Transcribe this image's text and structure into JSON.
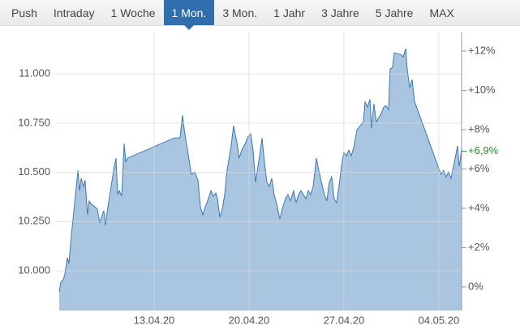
{
  "tabs": [
    "Push",
    "Intraday",
    "1 Woche",
    "1 Mon.",
    "3 Mon.",
    "1 Jahr",
    "3 Jahre",
    "5 Jahre",
    "MAX"
  ],
  "active_tab": 3,
  "chart_data": {
    "type": "area",
    "color": "#a9c5df",
    "line_color": "#3b78b3",
    "grid": true,
    "x": [
      0,
      0.12,
      0.3,
      0.42,
      0.6,
      0.72,
      0.9,
      1.14,
      1.38,
      1.5,
      1.62,
      1.79,
      1.91,
      2.09,
      2.21,
      2.39,
      2.63,
      2.81,
      2.99,
      3.17,
      3.29,
      3.41,
      3.59,
      3.83,
      4.01,
      4.19,
      4.31,
      4.43,
      4.61,
      4.79,
      4.91,
      5.03,
      8.5,
      8.91,
      9.09,
      9.27,
      9.51,
      9.75,
      9.99,
      10.23,
      10.41,
      10.59,
      10.77,
      11.01,
      11.19,
      11.37,
      11.55,
      11.67,
      11.85,
      12.03,
      12.21,
      12.38,
      12.68,
      12.86,
      13.1,
      13.28,
      13.46,
      13.7,
      13.94,
      14.12,
      14.3,
      14.48,
      14.66,
      14.84,
      14.96,
      15.14,
      15.32,
      15.5,
      15.68,
      15.85,
      16.09,
      16.27,
      16.45,
      16.69,
      16.87,
      17.05,
      17.29,
      17.47,
      17.65,
      17.83,
      18.01,
      18.19,
      18.37,
      18.55,
      18.73,
      18.97,
      19.15,
      19.39,
      19.56,
      19.74,
      19.92,
      20.1,
      20.28,
      20.46,
      20.64,
      20.82,
      21,
      21.18,
      21.36,
      21.54,
      21.72,
      21.96,
      22.2,
      22.44,
      22.56,
      22.74,
      22.92,
      23.03,
      23.21,
      23.39,
      23.57,
      23.75,
      23.93,
      24.11,
      24.29,
      24.41,
      24.59,
      24.71,
      24.95,
      25.19,
      25.37,
      25.55,
      25.67,
      25.85,
      26.03,
      26.21,
      27.94,
      28.18,
      28.36,
      28.54,
      28.72,
      28.9,
      29.14,
      29.38,
      29.5,
      29.56,
      29.68
    ],
    "values": [
      9.893,
      9.942,
      9.955,
      9.984,
      10.066,
      10.037,
      10.181,
      10.346,
      10.51,
      10.407,
      10.469,
      10.428,
      10.461,
      10.284,
      10.354,
      10.337,
      10.325,
      10.313,
      10.243,
      10.284,
      10.305,
      10.23,
      10.325,
      10.428,
      10.51,
      10.572,
      10.387,
      10.407,
      10.379,
      10.646,
      10.551,
      10.572,
      10.675,
      10.675,
      10.79,
      10.695,
      10.593,
      10.49,
      10.502,
      10.461,
      10.325,
      10.284,
      10.325,
      10.366,
      10.407,
      10.379,
      10.395,
      10.366,
      10.272,
      10.313,
      10.387,
      10.51,
      10.634,
      10.737,
      10.654,
      10.572,
      10.613,
      10.642,
      10.683,
      10.695,
      10.613,
      10.449,
      10.531,
      10.613,
      10.675,
      10.551,
      10.449,
      10.428,
      10.469,
      10.387,
      10.325,
      10.263,
      10.313,
      10.366,
      10.387,
      10.354,
      10.407,
      10.346,
      10.387,
      10.407,
      10.387,
      10.366,
      10.407,
      10.387,
      10.428,
      10.572,
      10.51,
      10.436,
      10.387,
      10.354,
      10.449,
      10.477,
      10.366,
      10.346,
      10.428,
      10.531,
      10.601,
      10.584,
      10.613,
      10.584,
      10.625,
      10.716,
      10.737,
      10.757,
      10.86,
      10.831,
      10.872,
      10.724,
      10.848,
      10.757,
      10.778,
      10.798,
      10.831,
      10.839,
      10.819,
      11.025,
      11.033,
      11.107,
      11.103,
      11.099,
      11.086,
      11.128,
      11.025,
      10.93,
      10.971,
      10.86,
      10.531,
      10.49,
      10.51,
      10.477,
      10.502,
      10.469,
      10.551,
      10.634,
      10.531,
      10.551,
      10.625
    ],
    "xlim": [
      0,
      29.68
    ],
    "xticks": [
      {
        "value": 7,
        "label": "13.04.20"
      },
      {
        "value": 14,
        "label": "20.04.20"
      },
      {
        "value": 21,
        "label": "27.04.20"
      },
      {
        "value": 28,
        "label": "04.05.20"
      }
    ],
    "ylim": [
      9.798,
      11.211
    ],
    "yticks": [
      {
        "value": 10,
        "label": "10.000"
      },
      {
        "value": 10.25,
        "label": "10.250"
      },
      {
        "value": 10.5,
        "label": "10.500"
      },
      {
        "value": 10.75,
        "label": "10.750"
      },
      {
        "value": 11,
        "label": "11.000"
      }
    ],
    "y2lim": [
      -1.2,
      12.95
    ],
    "y2ticks": [
      {
        "value": 0,
        "label": "0%"
      },
      {
        "value": 2,
        "label": "+2%"
      },
      {
        "value": 4,
        "label": "+4%"
      },
      {
        "value": 6,
        "label": "+6%"
      },
      {
        "value": 8,
        "label": "+8%"
      },
      {
        "value": 10,
        "label": "+10%"
      },
      {
        "value": 12,
        "label": "+12%"
      }
    ],
    "last_change": {
      "value": 6.9,
      "label": "+6,9%",
      "color": "#2a8a2a"
    }
  }
}
